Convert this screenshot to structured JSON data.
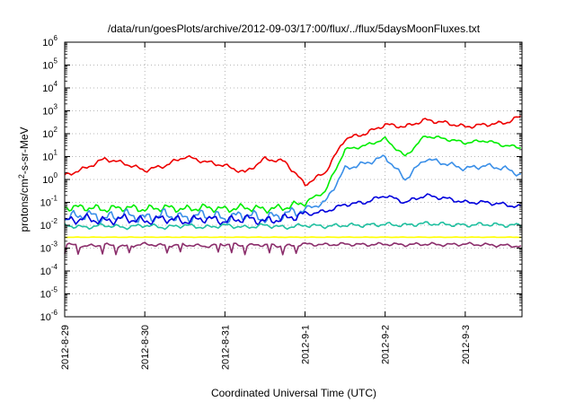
{
  "chart_data": {
    "type": "line",
    "title": "/data/run/goesPlots/archive/2012-09-03/17:00/flux/../flux/5daysMoonFluxes.txt",
    "xlabel": "Coordinated Universal Time (UTC)",
    "ylabel": {
      "prefix": "protons/cm",
      "sup": "2",
      "suffix": "-s-sr-MeV"
    },
    "yscale": "log",
    "ylim": [
      1e-06,
      1000000.0
    ],
    "xlim": [
      "2012-08-29",
      "2012-09-03 17:00"
    ],
    "grid": true,
    "legend": "none",
    "x_ticks": [
      "2012-8-29",
      "2012-8-30",
      "2012-8-31",
      "2012-9-1",
      "2012-9-2",
      "2012-9-3"
    ],
    "y_ticks": [
      {
        "base": "10",
        "exp": "-6"
      },
      {
        "base": "10",
        "exp": "-5"
      },
      {
        "base": "10",
        "exp": "-4"
      },
      {
        "base": "10",
        "exp": "-3"
      },
      {
        "base": "10",
        "exp": "-2"
      },
      {
        "base": "10",
        "exp": "-1"
      },
      {
        "base": "10",
        "exp": "0"
      },
      {
        "base": "10",
        "exp": "1"
      },
      {
        "base": "10",
        "exp": "2"
      },
      {
        "base": "10",
        "exp": "3"
      },
      {
        "base": "10",
        "exp": "4"
      },
      {
        "base": "10",
        "exp": "5"
      },
      {
        "base": "10",
        "exp": "6"
      }
    ],
    "series_x": [
      "2012-08-29 00:00",
      "2012-08-29 06:00",
      "2012-08-29 12:00",
      "2012-08-29 18:00",
      "2012-08-30 00:00",
      "2012-08-30 06:00",
      "2012-08-30 12:00",
      "2012-08-30 18:00",
      "2012-08-31 00:00",
      "2012-08-31 06:00",
      "2012-08-31 12:00",
      "2012-08-31 18:00",
      "2012-09-01 00:00",
      "2012-09-01 06:00",
      "2012-09-01 12:00",
      "2012-09-01 18:00",
      "2012-09-02 00:00",
      "2012-09-02 06:00",
      "2012-09-02 12:00",
      "2012-09-02 18:00",
      "2012-09-03 00:00",
      "2012-09-03 06:00",
      "2012-09-03 12:00",
      "2012-09-03 17:00"
    ],
    "series": [
      {
        "color": "#ee0000",
        "values": [
          1.5,
          3,
          8,
          5,
          2.5,
          4,
          10,
          6,
          4,
          2,
          8,
          6,
          0.6,
          2,
          60,
          100,
          250,
          200,
          400,
          300,
          200,
          250,
          300,
          600
        ]
      },
      {
        "color": "#00ee00",
        "values": [
          0.06,
          0.06,
          0.05,
          0.06,
          0.05,
          0.06,
          0.05,
          0.06,
          0.05,
          0.06,
          0.05,
          0.06,
          0.1,
          0.3,
          20,
          30,
          60,
          10,
          80,
          60,
          40,
          50,
          30,
          25
        ]
      },
      {
        "color": "#3a8fe8",
        "values": [
          0.02,
          0.03,
          0.02,
          0.03,
          0.02,
          0.03,
          0.02,
          0.03,
          0.02,
          0.03,
          0.02,
          0.03,
          0.05,
          0.1,
          3,
          5,
          10,
          1,
          8,
          5,
          3,
          4,
          3,
          1.5
        ]
      },
      {
        "color": "#0000dd",
        "values": [
          0.015,
          0.02,
          0.015,
          0.02,
          0.015,
          0.02,
          0.015,
          0.02,
          0.015,
          0.02,
          0.015,
          0.02,
          0.03,
          0.04,
          0.08,
          0.1,
          0.2,
          0.1,
          0.2,
          0.15,
          0.1,
          0.1,
          0.08,
          0.06
        ]
      },
      {
        "color": "#20c0a0",
        "values": [
          0.01,
          0.008,
          0.01,
          0.008,
          0.01,
          0.008,
          0.01,
          0.008,
          0.01,
          0.008,
          0.01,
          0.008,
          0.01,
          0.009,
          0.01,
          0.01,
          0.011,
          0.01,
          0.012,
          0.011,
          0.01,
          0.011,
          0.01,
          0.01
        ]
      },
      {
        "color": "#ffff00",
        "values": [
          0.003,
          0.003,
          0.003,
          0.003,
          0.003,
          0.003,
          0.003,
          0.003,
          0.003,
          0.003,
          0.003,
          0.003,
          0.003,
          0.003,
          0.003,
          0.003,
          0.003,
          0.003,
          0.003,
          0.003,
          0.003,
          0.003,
          0.003,
          0.003
        ]
      },
      {
        "color": "#8b2d6b",
        "values": [
          0.0015,
          0.0012,
          0.0014,
          0.0012,
          0.0015,
          0.0013,
          0.0014,
          0.0012,
          0.0015,
          0.0013,
          0.0014,
          0.0012,
          0.0015,
          0.0014,
          0.0015,
          0.0014,
          0.0015,
          0.0014,
          0.0015,
          0.0014,
          0.0015,
          0.0014,
          0.0013,
          0.0012
        ]
      }
    ]
  }
}
